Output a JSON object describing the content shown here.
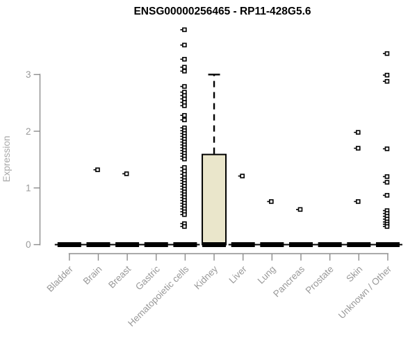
{
  "title": "ENSG00000256465 - RP11-428G5.6",
  "chart_data": {
    "type": "boxplot",
    "title": "ENSG00000256465 - RP11-428G5.6",
    "ylabel": "Expression",
    "xlabel": "",
    "yticks": [
      0,
      1,
      2,
      3
    ],
    "ylim": [
      -0.2,
      3.9
    ],
    "grid": false,
    "legend": "none",
    "colors": {
      "box_fill": "#eae6cb",
      "box_stroke": "#000000",
      "flat_bar": "#000000",
      "axis": "#8c8c8c",
      "tick_label": "#999999",
      "axis_label": "#a8a8a8",
      "title": "#000000",
      "point_stroke": "#000000",
      "point_fill": "#ffffff"
    },
    "categories": [
      "Bladder",
      "Brain",
      "Breast",
      "Gastric",
      "Hematopoietic cells",
      "Kidney",
      "Liver",
      "Lung",
      "Pancreas",
      "Prostate",
      "Skin",
      "Unknown / Other"
    ],
    "boxes": [
      {
        "category": "Bladder",
        "q1": 0,
        "median": 0,
        "q3": 0,
        "whisker_low": 0,
        "whisker_high": 0,
        "outliers": []
      },
      {
        "category": "Brain",
        "q1": 0,
        "median": 0,
        "q3": 0,
        "whisker_low": 0,
        "whisker_high": 0,
        "outliers": [
          1.32
        ]
      },
      {
        "category": "Breast",
        "q1": 0,
        "median": 0,
        "q3": 0,
        "whisker_low": 0,
        "whisker_high": 0,
        "outliers": [
          1.25
        ]
      },
      {
        "category": "Gastric",
        "q1": 0,
        "median": 0,
        "q3": 0,
        "whisker_low": 0,
        "whisker_high": 0,
        "outliers": []
      },
      {
        "category": "Hematopoietic cells",
        "q1": 0,
        "median": 0,
        "q3": 0,
        "whisker_low": 0,
        "whisker_high": 0,
        "outliers": [
          3.79,
          3.52,
          3.27,
          3.13,
          3.06,
          2.79,
          2.69,
          2.63,
          2.57,
          2.51,
          2.45,
          2.28,
          2.2,
          2.06,
          2.01,
          1.96,
          1.91,
          1.86,
          1.81,
          1.76,
          1.71,
          1.66,
          1.61,
          1.56,
          1.51,
          1.36,
          1.3,
          1.24,
          1.18,
          1.13,
          1.08,
          1.03,
          0.98,
          0.93,
          0.88,
          0.83,
          0.78,
          0.73,
          0.68,
          0.63,
          0.58,
          0.53,
          0.37,
          0.32
        ]
      },
      {
        "category": "Kidney",
        "q1": 0,
        "median": 0,
        "q3": 1.59,
        "whisker_low": 0,
        "whisker_high": 3.0,
        "outliers": []
      },
      {
        "category": "Liver",
        "q1": 0,
        "median": 0,
        "q3": 0,
        "whisker_low": 0,
        "whisker_high": 0,
        "outliers": [
          1.21
        ]
      },
      {
        "category": "Lung",
        "q1": 0,
        "median": 0,
        "q3": 0,
        "whisker_low": 0,
        "whisker_high": 0,
        "outliers": [
          0.76
        ]
      },
      {
        "category": "Pancreas",
        "q1": 0,
        "median": 0,
        "q3": 0,
        "whisker_low": 0,
        "whisker_high": 0,
        "outliers": [
          0.62
        ]
      },
      {
        "category": "Prostate",
        "q1": 0,
        "median": 0,
        "q3": 0,
        "whisker_low": 0,
        "whisker_high": 0,
        "outliers": []
      },
      {
        "category": "Skin",
        "q1": 0,
        "median": 0,
        "q3": 0,
        "whisker_low": 0,
        "whisker_high": 0,
        "outliers": [
          1.98,
          1.7,
          0.76
        ]
      },
      {
        "category": "Unknown / Other",
        "q1": 0,
        "median": 0,
        "q3": 0,
        "whisker_low": 0,
        "whisker_high": 0,
        "outliers": [
          3.37,
          2.99,
          2.88,
          1.69,
          1.2,
          1.1,
          0.87,
          0.6,
          0.55,
          0.5,
          0.45,
          0.4,
          0.36,
          0.32
        ]
      }
    ]
  }
}
